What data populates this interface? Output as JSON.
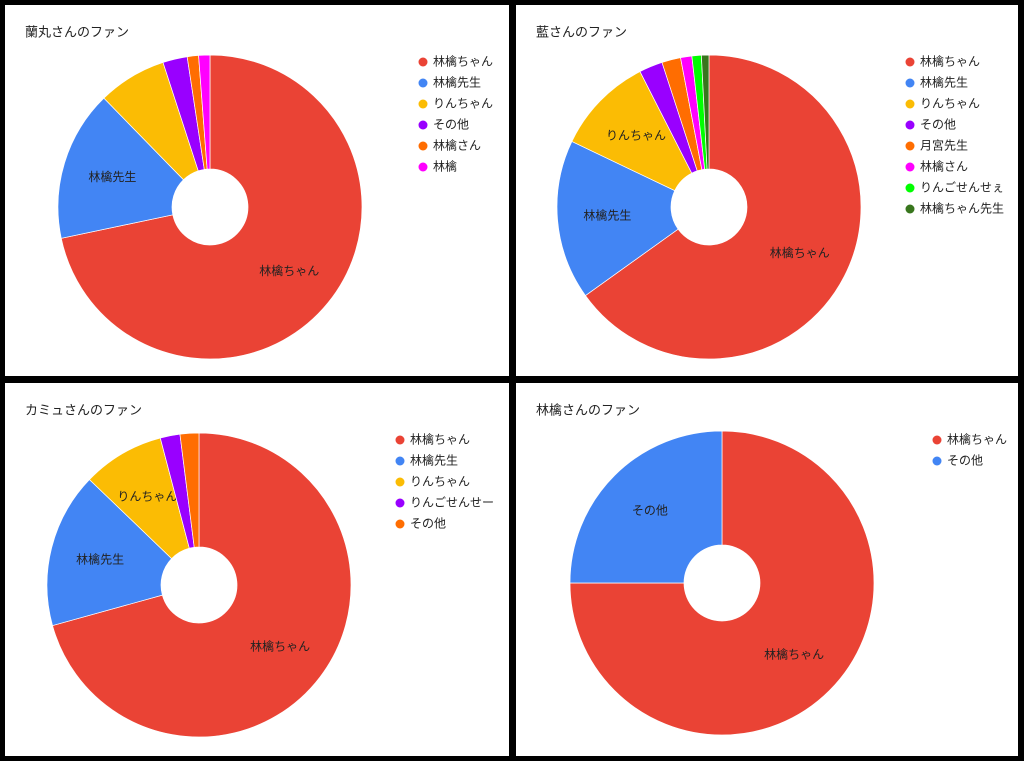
{
  "chart_data": [
    {
      "type": "pie",
      "title": "蘭丸さんのファン",
      "categories": [
        "林檎ちゃん",
        "林檎先生",
        "りんちゃん",
        "その他",
        "林檎さん",
        "林檎"
      ],
      "values": [
        71.7,
        16,
        7.3,
        2.6,
        1.2,
        1.2
      ],
      "colors": [
        "#ea4335",
        "#4285f4",
        "#fbbc04",
        "#9900ff",
        "#ff6d01",
        "#ff00ff"
      ]
    },
    {
      "type": "pie",
      "title": "藍さんのファン",
      "categories": [
        "林檎ちゃん",
        "林檎先生",
        "りんちゃん",
        "その他",
        "月宮先生",
        "林檎さん",
        "りんごせんせぇ",
        "林檎ちゃん先生"
      ],
      "values": [
        65.1,
        17,
        10.4,
        2.5,
        2,
        1.2,
        1,
        0.8
      ],
      "colors": [
        "#ea4335",
        "#4285f4",
        "#fbbc04",
        "#9900ff",
        "#ff6d01",
        "#ff00ff",
        "#00ff00",
        "#38761d"
      ]
    },
    {
      "type": "pie",
      "title": "カミュさんのファン",
      "categories": [
        "林檎ちゃん",
        "林檎先生",
        "りんちゃん",
        "りんごせんせー",
        "その他"
      ],
      "values": [
        70.7,
        16.5,
        8.7,
        2.1,
        2
      ],
      "colors": [
        "#ea4335",
        "#4285f4",
        "#fbbc04",
        "#9900ff",
        "#ff6d01"
      ]
    },
    {
      "type": "pie",
      "title": "林檎さんのファン",
      "categories": [
        "林檎ちゃん",
        "その他"
      ],
      "values": [
        75,
        25
      ],
      "colors": [
        "#ea4335",
        "#4285f4"
      ]
    }
  ]
}
